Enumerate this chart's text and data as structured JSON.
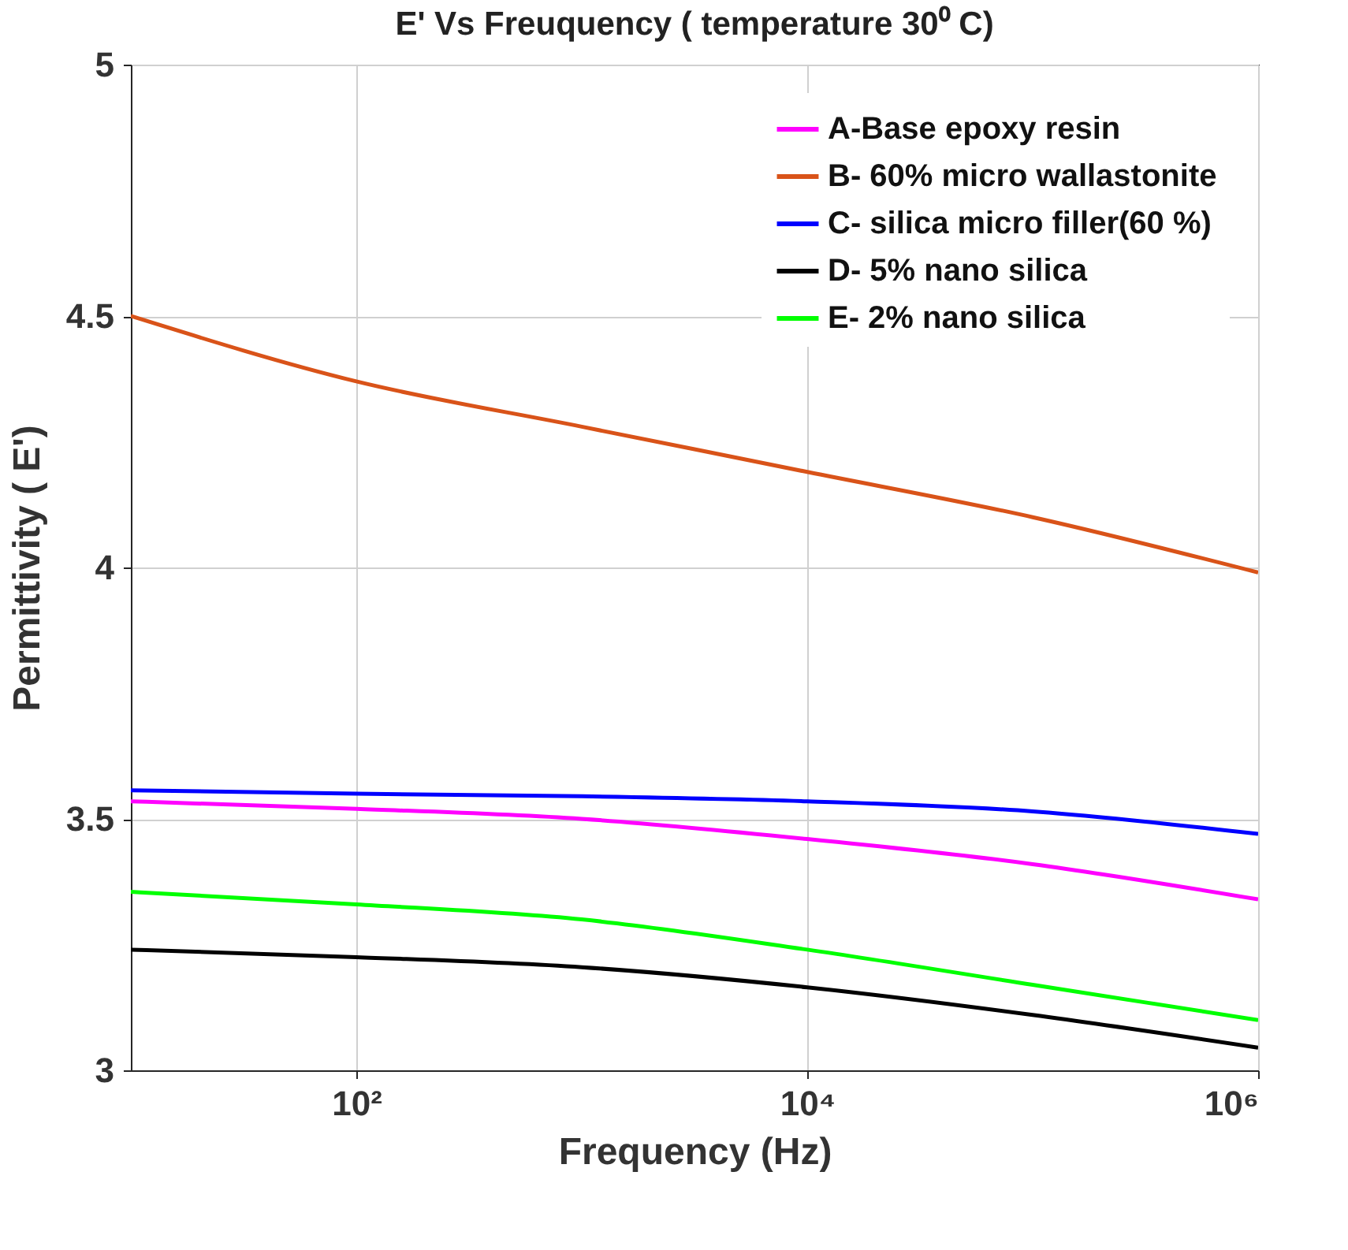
{
  "chart_data": {
    "type": "line",
    "title": "E' Vs Freuquency ( temperature 30⁰ C)",
    "xlabel": "Frequency (Hz)",
    "ylabel": "Permittivity ( E')",
    "log": "x",
    "grid": true,
    "legend": "top right",
    "line_style": "solid",
    "marker": "none",
    "x": [
      10,
      100,
      1000,
      10000,
      100000,
      1000000
    ],
    "xlim": [
      10,
      1000000
    ],
    "xticks": [
      {
        "value": 100,
        "label": "10²"
      },
      {
        "value": 10000,
        "label": "10⁴"
      },
      {
        "value": 1000000,
        "label": "10⁶"
      }
    ],
    "ylim": [
      3,
      5
    ],
    "yticks": [
      3,
      3.5,
      4,
      4.5,
      5
    ],
    "series": [
      {
        "name": "A-Base epoxy resin",
        "color": "#ff00ff",
        "values": [
          3.535,
          3.52,
          3.5,
          3.46,
          3.41,
          3.34
        ]
      },
      {
        "name": "B- 60% micro wallastonite",
        "color": "#d95319",
        "values": [
          4.5,
          4.37,
          4.28,
          4.19,
          4.1,
          3.99
        ]
      },
      {
        "name": "C- silica micro filler(60 %)",
        "color": "#0000ff",
        "values": [
          3.557,
          3.55,
          3.545,
          3.535,
          3.515,
          3.47
        ]
      },
      {
        "name": "D- 5% nano silica",
        "color": "#000000",
        "values": [
          3.24,
          3.225,
          3.205,
          3.165,
          3.11,
          3.045
        ]
      },
      {
        "name": "E- 2% nano silica",
        "color": "#00ff00",
        "values": [
          3.355,
          3.33,
          3.3,
          3.24,
          3.17,
          3.1
        ]
      }
    ]
  }
}
